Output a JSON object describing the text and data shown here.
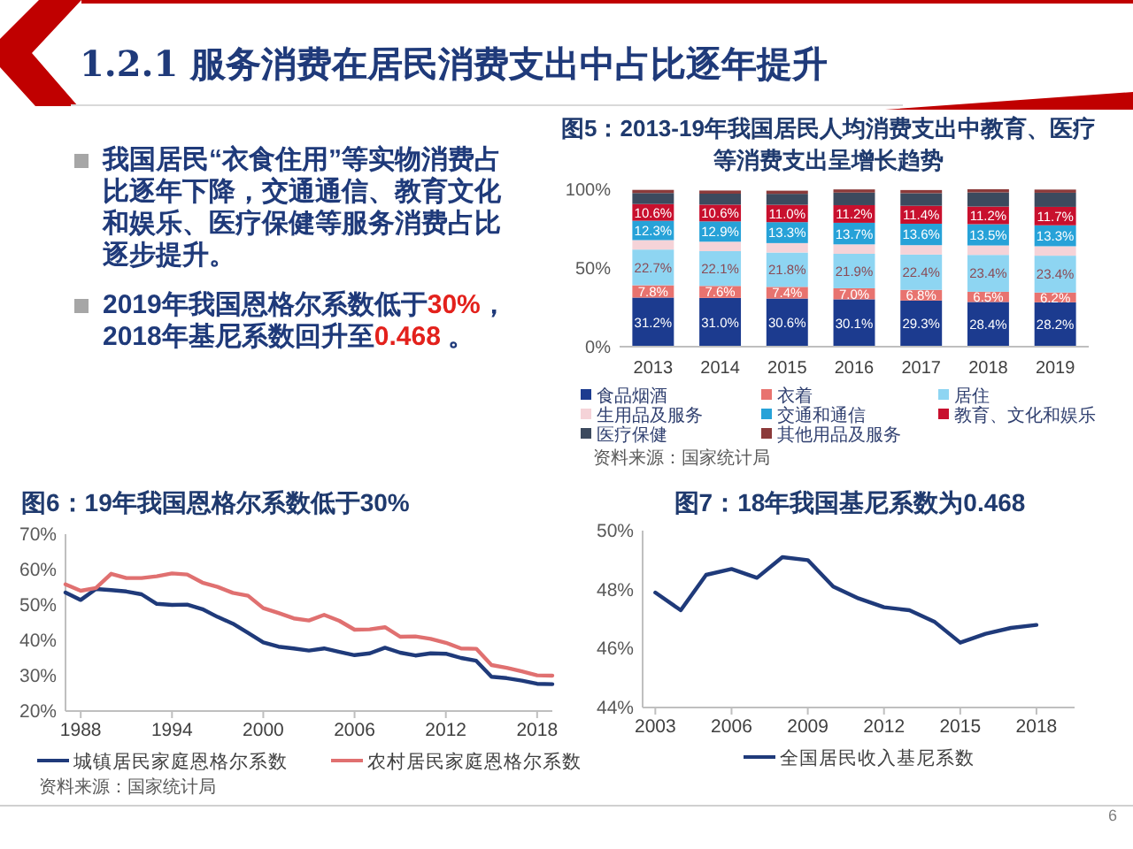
{
  "chart_data": [
    {
      "type": "other",
      "title": "1.2.1 服务消费在居民消费支出中占比逐年提升",
      "annotations": [
        "我国居民“衣食住用”等实物消费占比逐年下降，交通通信、教育文化和娱乐、医疗保健等服务消费占比逐步提升。",
        "2019年我国恩格尔系数低于**30%**，2018年基尼系数回升至**0.468** 。",
        "6"
      ]
    },
    {
      "type": "bar",
      "stacked": true,
      "title": "图5：2013-19年我国居民人均消费支出中教育、医疗等消费支出呈增长趋势",
      "categories": [
        "2013",
        "2014",
        "2015",
        "2016",
        "2017",
        "2018",
        "2019"
      ],
      "series": [
        {
          "name": "食品烟酒",
          "color": "#1c3b8f",
          "values": [
            31.2,
            31.0,
            30.6,
            30.1,
            29.3,
            28.4,
            28.2
          ],
          "value_labels": [
            "31.2%",
            "31.0%",
            "30.6%",
            "30.1%",
            "29.3%",
            "28.4%",
            "28.2%"
          ]
        },
        {
          "name": "衣着",
          "color": "#e8736f",
          "values": [
            7.8,
            7.6,
            7.4,
            7.0,
            6.8,
            6.5,
            6.2
          ],
          "value_labels": [
            "7.8%",
            "7.6%",
            "7.4%",
            "7.0%",
            "6.8%",
            "6.5%",
            "6.2%"
          ]
        },
        {
          "name": "居住",
          "color": "#8ed5f2",
          "values": [
            22.7,
            22.1,
            21.8,
            21.9,
            22.4,
            23.4,
            23.4
          ],
          "value_labels": [
            "22.7%",
            "22.1%",
            "21.8%",
            "21.9%",
            "22.4%",
            "23.4%",
            "23.4%"
          ]
        },
        {
          "name": "生用品及服务",
          "color": "#f5d3d8",
          "values": [
            6,
            6,
            6,
            6,
            6,
            6,
            6
          ]
        },
        {
          "name": "交通和通信",
          "color": "#27a2d8",
          "values": [
            12.3,
            12.9,
            13.3,
            13.7,
            13.6,
            13.5,
            13.3
          ],
          "value_labels": [
            "12.3%",
            "12.9%",
            "13.3%",
            "13.7%",
            "13.6%",
            "13.5%",
            "13.3%"
          ]
        },
        {
          "name": "教育、文化和娱乐",
          "color": "#c8102e",
          "values": [
            10.6,
            10.6,
            11.0,
            11.2,
            11.4,
            11.2,
            11.7
          ],
          "value_labels": [
            "10.6%",
            "10.6%",
            "11.0%",
            "11.2%",
            "11.4%",
            "11.2%",
            "11.7%"
          ]
        },
        {
          "name": "医疗保健",
          "color": "#3c4a5e",
          "values": [
            7,
            7,
            7,
            8,
            8,
            9,
            9
          ]
        },
        {
          "name": "其他用品及服务",
          "color": "#8b3a3a",
          "values": [
            2,
            2,
            2,
            2,
            2,
            2,
            2
          ]
        }
      ],
      "ylim": [
        0,
        100
      ],
      "yticks": [
        {
          "value": 0,
          "label": "0%"
        },
        {
          "value": 50,
          "label": "50%"
        },
        {
          "value": 100,
          "label": "100%"
        }
      ],
      "legend": "bottom",
      "annotations": [
        "资料来源：国家统计局"
      ]
    },
    {
      "type": "line",
      "title": "图6：19年我国恩格尔系数低于30%",
      "x": [
        1987,
        1988,
        1989,
        1990,
        1991,
        1992,
        1993,
        1994,
        1995,
        1996,
        1997,
        1998,
        1999,
        2000,
        2001,
        2002,
        2003,
        2004,
        2005,
        2006,
        2007,
        2008,
        2009,
        2010,
        2011,
        2012,
        2013,
        2014,
        2015,
        2016,
        2017,
        2018,
        2019
      ],
      "series": [
        {
          "name": "城镇居民家庭恩格尔系数",
          "color": "#1f3a7a",
          "values": [
            53.5,
            51.4,
            54.5,
            54.2,
            53.8,
            53.0,
            50.3,
            50.0,
            50.1,
            48.8,
            46.6,
            44.7,
            42.1,
            39.4,
            38.2,
            37.7,
            37.1,
            37.7,
            36.7,
            35.8,
            36.3,
            37.9,
            36.5,
            35.7,
            36.3,
            36.2,
            35.0,
            34.2,
            29.7,
            29.3,
            28.6,
            27.7,
            27.6
          ]
        },
        {
          "name": "农村居民家庭恩格尔系数",
          "color": "#e07070",
          "values": [
            55.8,
            54.0,
            54.8,
            58.8,
            57.6,
            57.6,
            58.1,
            58.9,
            58.6,
            56.3,
            55.1,
            53.4,
            52.6,
            49.1,
            47.7,
            46.2,
            45.6,
            47.2,
            45.5,
            43.0,
            43.1,
            43.7,
            41.0,
            41.1,
            40.4,
            39.3,
            37.7,
            37.6,
            33.0,
            32.2,
            31.2,
            30.1,
            30.0
          ]
        }
      ],
      "xlim": [
        1987,
        2019
      ],
      "xticks": [
        1988,
        1994,
        2000,
        2006,
        2012,
        2018
      ],
      "ylim": [
        20,
        70
      ],
      "yticks": [
        {
          "value": 20,
          "label": "20%"
        },
        {
          "value": 30,
          "label": "30%"
        },
        {
          "value": 40,
          "label": "40%"
        },
        {
          "value": 50,
          "label": "50%"
        },
        {
          "value": 60,
          "label": "60%"
        },
        {
          "value": 70,
          "label": "70%"
        }
      ],
      "legend": "bottom",
      "annotations": [
        "资料来源：国家统计局"
      ]
    },
    {
      "type": "line",
      "title": "图7：18年我国基尼系数为0.468",
      "x": [
        2003,
        2004,
        2005,
        2006,
        2007,
        2008,
        2009,
        2010,
        2011,
        2012,
        2013,
        2014,
        2015,
        2016,
        2017,
        2018
      ],
      "series": [
        {
          "name": "全国居民收入基尼系数",
          "color": "#1f3a7a",
          "values": [
            47.9,
            47.3,
            48.5,
            48.7,
            48.4,
            49.1,
            49.0,
            48.1,
            47.7,
            47.4,
            47.3,
            46.9,
            46.2,
            46.5,
            46.7,
            46.8
          ]
        }
      ],
      "xlim": [
        2002.5,
        2019.5
      ],
      "xticks": [
        2003,
        2006,
        2009,
        2012,
        2015,
        2018
      ],
      "ylim": [
        44,
        50
      ],
      "yticks": [
        {
          "value": 44,
          "label": "44%"
        },
        {
          "value": 46,
          "label": "46%"
        },
        {
          "value": 48,
          "label": "48%"
        },
        {
          "value": 50,
          "label": "50%"
        }
      ],
      "legend": "bottom"
    }
  ]
}
